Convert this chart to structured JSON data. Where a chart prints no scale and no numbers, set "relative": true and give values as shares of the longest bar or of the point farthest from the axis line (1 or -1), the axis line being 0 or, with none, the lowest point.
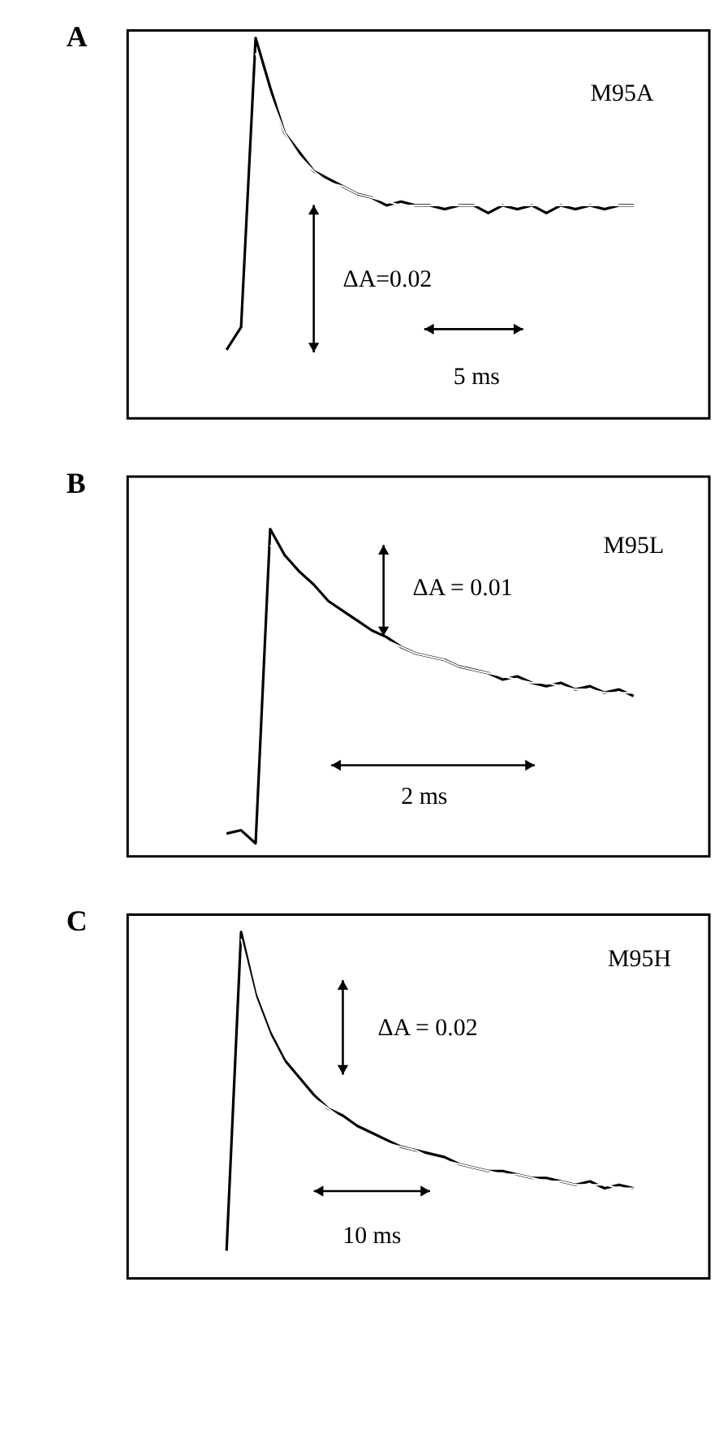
{
  "chart_data": [
    {
      "type": "line",
      "title": "A",
      "relative": true,
      "categories": [
        null,
        null,
        null,
        null,
        null,
        null,
        null,
        null,
        null,
        null,
        null,
        null,
        null,
        null,
        null,
        null,
        null,
        null,
        null,
        null,
        null,
        null,
        null,
        null,
        null,
        null,
        null,
        null,
        null
      ],
      "series": [
        {
          "color": "#000000",
          "values": [
            0.18,
            0.24,
            1.0,
            0.87,
            0.75,
            0.7,
            0.65,
            0.63,
            0.61,
            0.59,
            0.58,
            0.56,
            0.57,
            0.56,
            0.56,
            0.55,
            0.56,
            0.56,
            0.54,
            0.56,
            0.55,
            0.56,
            0.54,
            0.56,
            0.55,
            0.56,
            0.55,
            0.56,
            0.56
          ]
        },
        {
          "color": "#ffffff",
          "values": [
            null,
            null,
            0.96,
            0.85,
            0.75,
            0.69,
            0.65,
            0.62,
            0.61,
            0.59,
            0.58,
            0.57,
            0.56,
            0.56,
            0.56,
            0.56,
            0.56,
            0.56,
            0.56,
            0.56,
            0.56,
            0.56,
            0.56,
            0.56,
            0.56,
            0.56,
            0.56,
            0.56,
            0.56
          ]
        }
      ],
      "annotations": [
        "M95A",
        "ΔA=0.02",
        "5 ms"
      ]
    },
    {
      "type": "line",
      "title": "B",
      "relative": true,
      "categories": [
        null,
        null,
        null,
        null,
        null,
        null,
        null,
        null,
        null,
        null,
        null,
        null,
        null,
        null,
        null,
        null,
        null,
        null,
        null,
        null,
        null,
        null,
        null,
        null,
        null,
        null,
        null,
        null,
        null
      ],
      "series": [
        {
          "color": "#000000",
          "values": [
            0.07,
            0.08,
            0.04,
            1.0,
            0.92,
            0.87,
            0.83,
            0.78,
            0.75,
            0.72,
            0.69,
            0.67,
            0.64,
            0.62,
            0.61,
            0.6,
            0.58,
            0.57,
            0.56,
            0.54,
            0.55,
            0.53,
            0.52,
            0.53,
            0.51,
            0.52,
            0.5,
            0.51,
            0.49
          ]
        },
        {
          "color": "#ffffff",
          "values": [
            null,
            null,
            null,
            0.95,
            0.9,
            0.86,
            0.81,
            0.77,
            0.74,
            0.71,
            0.68,
            0.66,
            0.64,
            0.62,
            0.61,
            0.6,
            0.58,
            0.57,
            0.56,
            0.55,
            0.54,
            0.53,
            0.53,
            0.52,
            0.51,
            0.51,
            0.5,
            0.5,
            0.5
          ]
        }
      ],
      "annotations": [
        "M95L",
        "ΔA = 0.01",
        "2 ms"
      ]
    },
    {
      "type": "line",
      "title": "C",
      "relative": true,
      "categories": [
        null,
        null,
        null,
        null,
        null,
        null,
        null,
        null,
        null,
        null,
        null,
        null,
        null,
        null,
        null,
        null,
        null,
        null,
        null,
        null,
        null,
        null,
        null,
        null,
        null,
        null,
        null,
        null,
        null
      ],
      "series": [
        {
          "color": "#000000",
          "values": [
            0.08,
            1.0,
            0.82,
            0.71,
            0.63,
            0.58,
            0.53,
            0.49,
            0.47,
            0.44,
            0.42,
            0.4,
            0.38,
            0.37,
            0.36,
            0.35,
            0.33,
            0.32,
            0.31,
            0.31,
            0.3,
            0.29,
            0.29,
            0.28,
            0.27,
            0.28,
            0.26,
            0.27,
            0.26
          ]
        },
        {
          "color": "#ffffff",
          "values": [
            null,
            0.98,
            0.81,
            0.7,
            0.62,
            0.57,
            0.52,
            0.49,
            0.46,
            0.43,
            0.41,
            0.39,
            0.38,
            0.37,
            0.35,
            0.34,
            0.33,
            0.32,
            0.31,
            0.3,
            0.3,
            0.29,
            0.28,
            0.28,
            0.27,
            0.27,
            0.27,
            0.26,
            0.26
          ]
        }
      ],
      "annotations": [
        "M95H",
        "ΔA = 0.02",
        "10 ms"
      ]
    }
  ]
}
